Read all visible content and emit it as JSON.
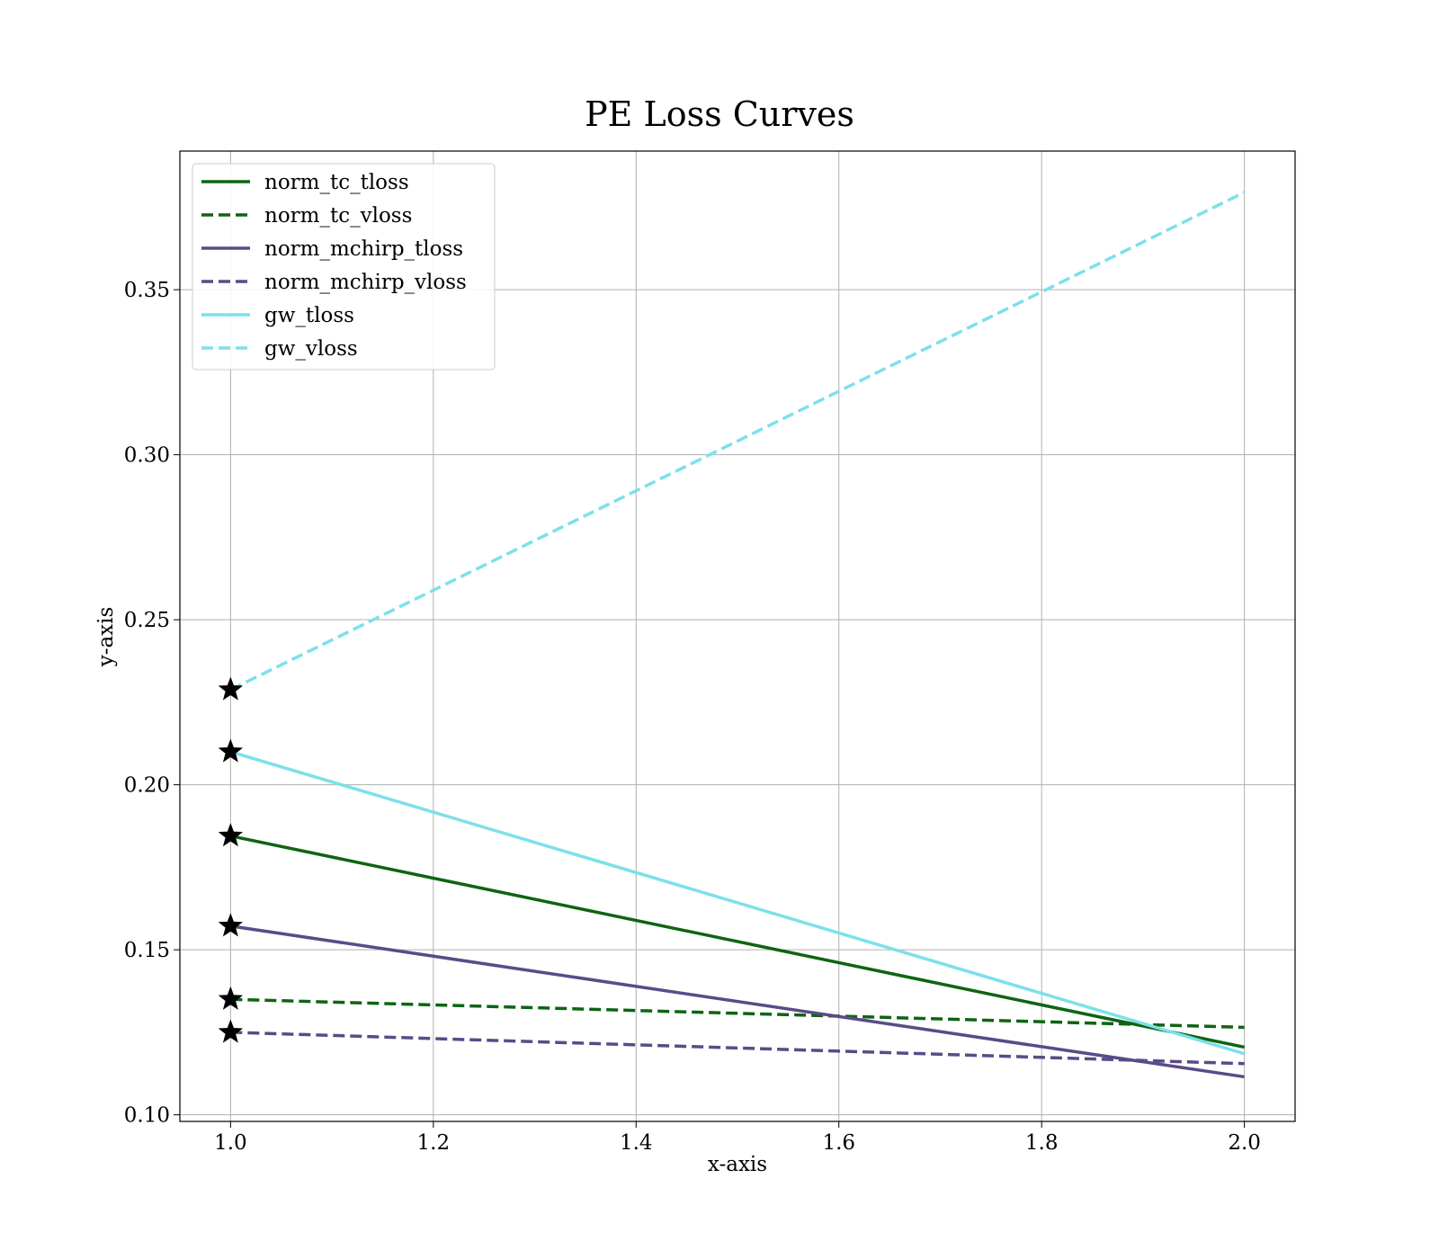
{
  "chart_data": {
    "type": "line",
    "title": "PE Loss Curves",
    "xlabel": "x-axis",
    "ylabel": "y-axis",
    "xlim": [
      0.95,
      2.05
    ],
    "ylim": [
      0.098,
      0.392
    ],
    "x_ticks": [
      1.0,
      1.2,
      1.4,
      1.6,
      1.8,
      2.0
    ],
    "x_tick_labels": [
      "1.0",
      "1.2",
      "1.4",
      "1.6",
      "1.8",
      "2.0"
    ],
    "y_ticks": [
      0.1,
      0.15,
      0.2,
      0.25,
      0.3,
      0.35
    ],
    "y_tick_labels": [
      "0.10",
      "0.15",
      "0.20",
      "0.25",
      "0.30",
      "0.35"
    ],
    "grid": true,
    "legend_position": "top-left",
    "markers": "star at first point of each series",
    "x": [
      1,
      2
    ],
    "series": [
      {
        "name": "norm_tc_tloss",
        "values": [
          0.1845,
          0.1205
        ],
        "color": "#0e6412",
        "style": "solid"
      },
      {
        "name": "norm_tc_vloss",
        "values": [
          0.135,
          0.1265
        ],
        "color": "#0e6412",
        "style": "dashed"
      },
      {
        "name": "norm_mchirp_tloss",
        "values": [
          0.1572,
          0.1115
        ],
        "color": "#5a4b87",
        "style": "solid"
      },
      {
        "name": "norm_mchirp_vloss",
        "values": [
          0.125,
          0.1155
        ],
        "color": "#5a4b87",
        "style": "dashed"
      },
      {
        "name": "gw_tloss",
        "values": [
          0.21,
          0.1185
        ],
        "color": "#7de0ea",
        "style": "solid"
      },
      {
        "name": "gw_vloss",
        "values": [
          0.2288,
          0.3795
        ],
        "color": "#7de0ea",
        "style": "dashed"
      }
    ]
  }
}
